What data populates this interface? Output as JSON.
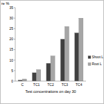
{
  "chart_data": {
    "type": "bar",
    "y_label": "re %",
    "x_label": "Test concentrations on day 30",
    "categories": [
      "C",
      "TC1",
      "TC2",
      "TC3",
      "TC4"
    ],
    "series": [
      {
        "name": "Shoot L",
        "color": "#404040",
        "values": [
          0.5,
          4,
          8.5,
          20,
          23
        ]
      },
      {
        "name": "Root L",
        "color": "#a6a6a6",
        "values": [
          1,
          5.5,
          12,
          26,
          30
        ]
      }
    ],
    "ylim": [
      0,
      35
    ],
    "yticks": [
      0,
      5,
      10,
      15,
      20,
      25,
      30,
      35
    ],
    "grid": false,
    "legend": "right"
  }
}
